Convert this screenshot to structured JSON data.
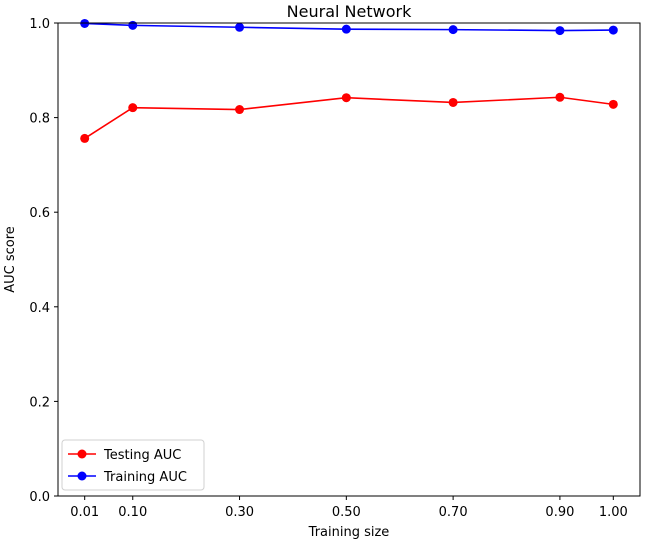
{
  "chart_data": {
    "type": "line",
    "title": "Neural Network",
    "xlabel": "Training size",
    "ylabel": "AUC score",
    "x": [
      0.01,
      0.1,
      0.3,
      0.5,
      0.7,
      0.9,
      1.0
    ],
    "x_tick_labels": [
      "0.01",
      "0.10",
      "0.30",
      "0.50",
      "0.70",
      "0.90",
      "1.00"
    ],
    "y_ticks": [
      0.0,
      0.2,
      0.4,
      0.6,
      0.8,
      1.0
    ],
    "y_tick_labels": [
      "0.0",
      "0.2",
      "0.4",
      "0.6",
      "0.8",
      "1.0"
    ],
    "xlim": [
      -0.04,
      1.05
    ],
    "ylim": [
      0.0,
      1.0
    ],
    "grid": false,
    "legend_position": "lower-left",
    "series": [
      {
        "name": "Testing AUC",
        "color": "#ff0000",
        "values": [
          0.756,
          0.821,
          0.817,
          0.842,
          0.832,
          0.843,
          0.828
        ]
      },
      {
        "name": "Training AUC",
        "color": "#0000ff",
        "values": [
          0.999,
          0.995,
          0.991,
          0.987,
          0.986,
          0.984,
          0.985
        ]
      }
    ]
  }
}
